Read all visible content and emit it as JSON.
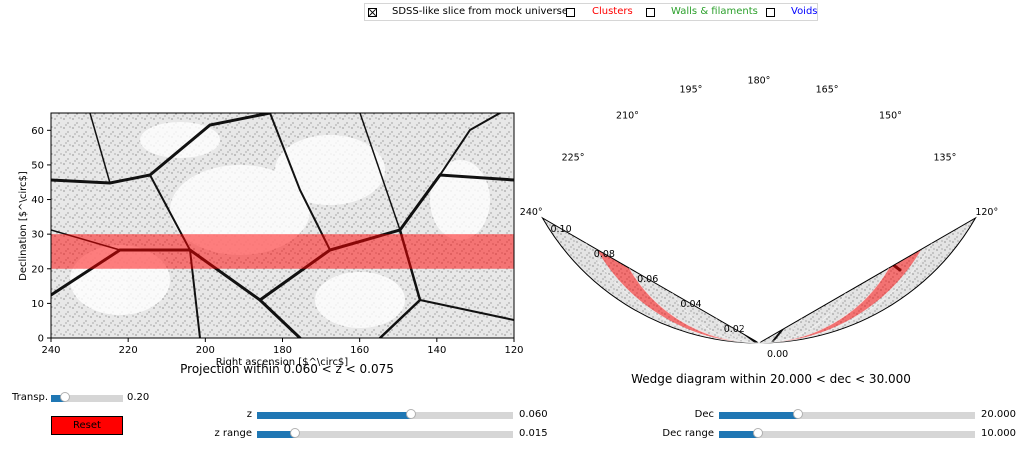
{
  "legend": {
    "items": [
      {
        "label": "SDSS-like slice from mock universe",
        "checked": true,
        "color": "#000000"
      },
      {
        "label": "Clusters",
        "checked": false,
        "color": "#ff0000"
      },
      {
        "label": "Walls & filaments",
        "checked": false,
        "color": "#2ca02c"
      },
      {
        "label": "Voids",
        "checked": false,
        "color": "#0000ff"
      }
    ]
  },
  "projection": {
    "title": "Projection within 0.060 < z < 0.075",
    "xlabel": "Right ascension [$^\\circ$]",
    "ylabel": "Declination [$^\\circ$]",
    "xticks": [
      "240",
      "220",
      "200",
      "180",
      "160",
      "140",
      "120"
    ],
    "yticks": [
      "0",
      "10",
      "20",
      "30",
      "40",
      "50",
      "60"
    ],
    "xlim": [
      240,
      120
    ],
    "ylim": [
      0,
      65
    ],
    "band": {
      "dec_min": 20,
      "dec_max": 30,
      "color": "#ff0000",
      "alpha": 0.5
    }
  },
  "wedge": {
    "title": "Wedge diagram within 20.000 < dec < 30.000",
    "angle_ticks": [
      "240°",
      "225°",
      "210°",
      "195°",
      "180°",
      "165°",
      "150°",
      "135°",
      "120°"
    ],
    "radial_ticks": [
      "0.00",
      "0.02",
      "0.04",
      "0.06",
      "0.08",
      "0.10"
    ],
    "ra_range": [
      120,
      240
    ],
    "z_range": [
      0,
      0.1
    ],
    "band": {
      "z_min": 0.06,
      "z_max": 0.075,
      "color": "#ff0000",
      "alpha": 0.5
    }
  },
  "controls": {
    "transparency": {
      "label": "Transp.",
      "value": 0.2,
      "min": 0,
      "max": 1,
      "display": "0.20"
    },
    "z": {
      "label": "z",
      "value": 0.06,
      "min": 0,
      "max": 0.1,
      "display": "0.060"
    },
    "z_range": {
      "label": "z range",
      "value": 0.015,
      "min": 0,
      "max": 0.1,
      "display": "0.015"
    },
    "dec": {
      "label": "Dec",
      "value": 20,
      "min": 0,
      "max": 65,
      "display": "20.000"
    },
    "dec_range": {
      "label": "Dec range",
      "value": 10,
      "min": 0,
      "max": 65,
      "display": "10.000"
    },
    "reset_label": "Reset"
  },
  "colors": {
    "accent": "#1f77b4",
    "track": "#d6d6d6",
    "reset": "#ff0000"
  }
}
